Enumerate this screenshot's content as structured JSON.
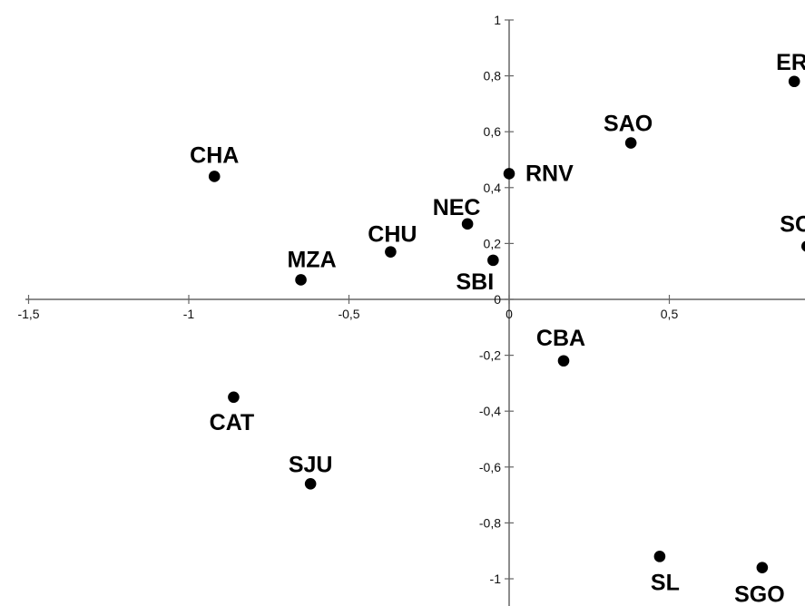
{
  "chart_data": {
    "type": "scatter",
    "title": "",
    "xlabel": "",
    "ylabel": "",
    "xlim": [
      -1.5,
      0.95
    ],
    "ylim": [
      -1.05,
      1
    ],
    "grid": false,
    "x_ticks": [
      {
        "value": -1.5,
        "label": "-1,5"
      },
      {
        "value": -1,
        "label": "-1"
      },
      {
        "value": -0.5,
        "label": "-0,5"
      },
      {
        "value": 0,
        "label": "0"
      },
      {
        "value": 0.5,
        "label": "0,5"
      }
    ],
    "y_ticks": [
      {
        "value": 1,
        "label": "1"
      },
      {
        "value": 0.8,
        "label": "0,8"
      },
      {
        "value": 0.6,
        "label": "0,6"
      },
      {
        "value": 0.4,
        "label": "0,4"
      },
      {
        "value": 0.2,
        "label": "0,2"
      },
      {
        "value": 0,
        "label": "0"
      },
      {
        "value": -0.2,
        "label": "-0,2"
      },
      {
        "value": -0.4,
        "label": "-0,4"
      },
      {
        "value": -0.6,
        "label": "-0,6"
      },
      {
        "value": -0.8,
        "label": "-0,8"
      },
      {
        "value": -1,
        "label": "-1"
      }
    ],
    "points": [
      {
        "label": "CHA",
        "x": -0.92,
        "y": 0.44
      },
      {
        "label": "MZA",
        "x": -0.65,
        "y": 0.07
      },
      {
        "label": "CHU",
        "x": -0.37,
        "y": 0.17
      },
      {
        "label": "NEC",
        "x": -0.13,
        "y": 0.27
      },
      {
        "label": "SBI",
        "x": -0.05,
        "y": 0.14
      },
      {
        "label": "RNV",
        "x": 0.0,
        "y": 0.45
      },
      {
        "label": "SAO",
        "x": 0.38,
        "y": 0.56
      },
      {
        "label": "ER",
        "x": 0.89,
        "y": 0.78
      },
      {
        "label": "SC",
        "x": 0.93,
        "y": 0.19
      },
      {
        "label": "CBA",
        "x": 0.17,
        "y": -0.22
      },
      {
        "label": "CAT",
        "x": -0.86,
        "y": -0.35
      },
      {
        "label": "SJU",
        "x": -0.62,
        "y": -0.66
      },
      {
        "label": "SL",
        "x": 0.47,
        "y": -0.92
      },
      {
        "label": "SGO",
        "x": 0.79,
        "y": -0.96
      }
    ],
    "colors": {
      "axis": "#666666",
      "marker": "#000000",
      "text": "#111111",
      "background": "#ffffff"
    }
  }
}
